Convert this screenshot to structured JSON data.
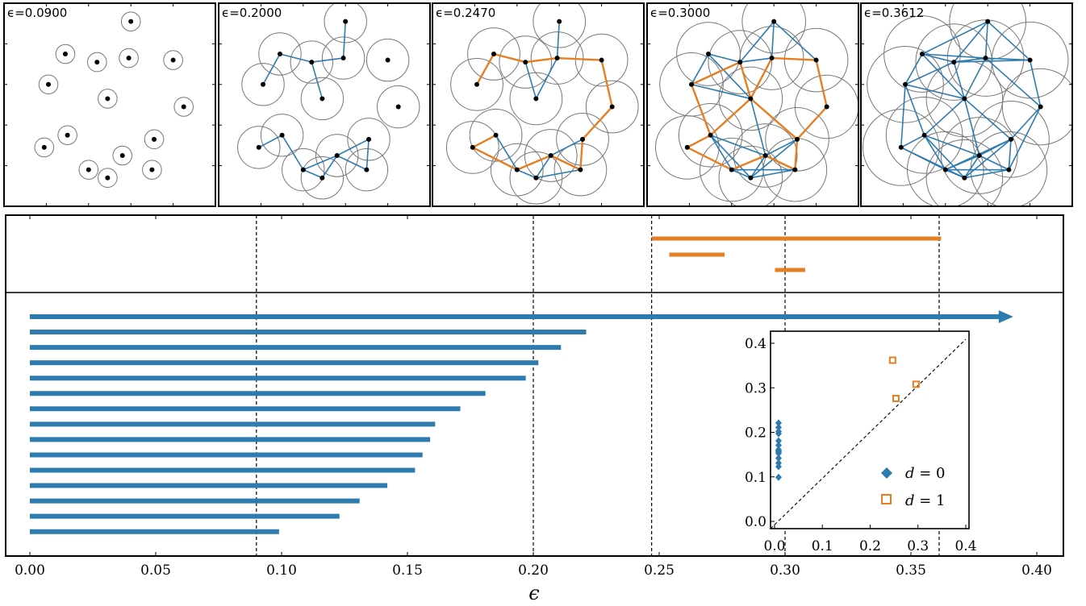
{
  "chart_data": [
    {
      "type": "scatter",
      "subtype": "vietoris-rips-complex-snapshots",
      "panels": [
        {
          "label": "ϵ=0.0900",
          "epsilon": 0.09
        },
        {
          "label": "ϵ=0.2000",
          "epsilon": 0.2
        },
        {
          "label": "ϵ=0.2470",
          "epsilon": 0.247
        },
        {
          "label": "ϵ=0.3000",
          "epsilon": 0.3
        },
        {
          "label": "ϵ=0.3612",
          "epsilon": 0.3612
        }
      ],
      "points": [
        [
          0.6,
          0.91
        ],
        [
          0.29,
          0.75
        ],
        [
          0.44,
          0.71
        ],
        [
          0.59,
          0.73
        ],
        [
          0.8,
          0.72
        ],
        [
          0.21,
          0.6
        ],
        [
          0.49,
          0.53
        ],
        [
          0.85,
          0.49
        ],
        [
          0.3,
          0.35
        ],
        [
          0.71,
          0.33
        ],
        [
          0.19,
          0.29
        ],
        [
          0.56,
          0.25
        ],
        [
          0.4,
          0.18
        ],
        [
          0.7,
          0.18
        ],
        [
          0.49,
          0.14
        ]
      ],
      "colors": {
        "h0": "#2e7bb0",
        "h1": "#e67e22",
        "points": "#000000",
        "balls": "#777777"
      }
    },
    {
      "type": "barcode",
      "xlabel": "ϵ",
      "xlim": [
        -0.01,
        0.41
      ],
      "xticks": [
        "0.00",
        "0.05",
        "0.10",
        "0.15",
        "0.20",
        "0.25",
        "0.30",
        "0.35",
        "0.40"
      ],
      "xtick_values": [
        0,
        0.05,
        0.1,
        0.15,
        0.2,
        0.25,
        0.3,
        0.35,
        0.4
      ],
      "vlines": [
        0.09,
        0.2,
        0.247,
        0.3,
        0.3612
      ],
      "h1_bars": [
        {
          "birth": 0.247,
          "death": 0.362
        },
        {
          "birth": 0.254,
          "death": 0.276
        },
        {
          "birth": 0.296,
          "death": 0.308
        }
      ],
      "h0_bars": [
        {
          "birth": 0,
          "death": null
        },
        {
          "birth": 0,
          "death": 0.221
        },
        {
          "birth": 0,
          "death": 0.211
        },
        {
          "birth": 0,
          "death": 0.202
        },
        {
          "birth": 0,
          "death": 0.197
        },
        {
          "birth": 0,
          "death": 0.181
        },
        {
          "birth": 0,
          "death": 0.171
        },
        {
          "birth": 0,
          "death": 0.161
        },
        {
          "birth": 0,
          "death": 0.159
        },
        {
          "birth": 0,
          "death": 0.156
        },
        {
          "birth": 0,
          "death": 0.153
        },
        {
          "birth": 0,
          "death": 0.142
        },
        {
          "birth": 0,
          "death": 0.131
        },
        {
          "birth": 0,
          "death": 0.123
        },
        {
          "birth": 0,
          "death": 0.099
        }
      ],
      "infinite_arrow_end": 0.39,
      "colors": {
        "h0": "#2e7bb0",
        "h1": "#e67e22",
        "vline": "#000000"
      }
    },
    {
      "type": "scatter",
      "subtype": "persistence-diagram",
      "xlim": [
        -0.02,
        0.41
      ],
      "ylim": [
        -0.02,
        0.42
      ],
      "xticks": [
        "0.0",
        "0.1",
        "0.2",
        "0.3",
        "0.4"
      ],
      "yticks": [
        "0.0",
        "0.1",
        "0.2",
        "0.3",
        "0.4"
      ],
      "tick_values": [
        0,
        0.1,
        0.2,
        0.3,
        0.4
      ],
      "series": [
        {
          "name": "d = 0",
          "marker": "diamond",
          "color": "#2e7bb0",
          "points": [
            [
              0,
              0.099
            ],
            [
              0,
              0.123
            ],
            [
              0,
              0.131
            ],
            [
              0,
              0.142
            ],
            [
              0,
              0.153
            ],
            [
              0,
              0.156
            ],
            [
              0,
              0.159
            ],
            [
              0,
              0.161
            ],
            [
              0,
              0.171
            ],
            [
              0,
              0.181
            ],
            [
              0,
              0.197
            ],
            [
              0,
              0.202
            ],
            [
              0,
              0.211
            ],
            [
              0,
              0.221
            ]
          ]
        },
        {
          "name": "d = 1",
          "marker": "open-square",
          "color": "#e67e22",
          "points": [
            [
              0.247,
              0.362
            ],
            [
              0.254,
              0.276
            ],
            [
              0.296,
              0.308
            ]
          ]
        }
      ],
      "legend": {
        "placement": "lower-right",
        "entries": [
          {
            "var": "d",
            "eq": " = 0"
          },
          {
            "var": "d",
            "eq": " = 1"
          }
        ]
      }
    }
  ]
}
